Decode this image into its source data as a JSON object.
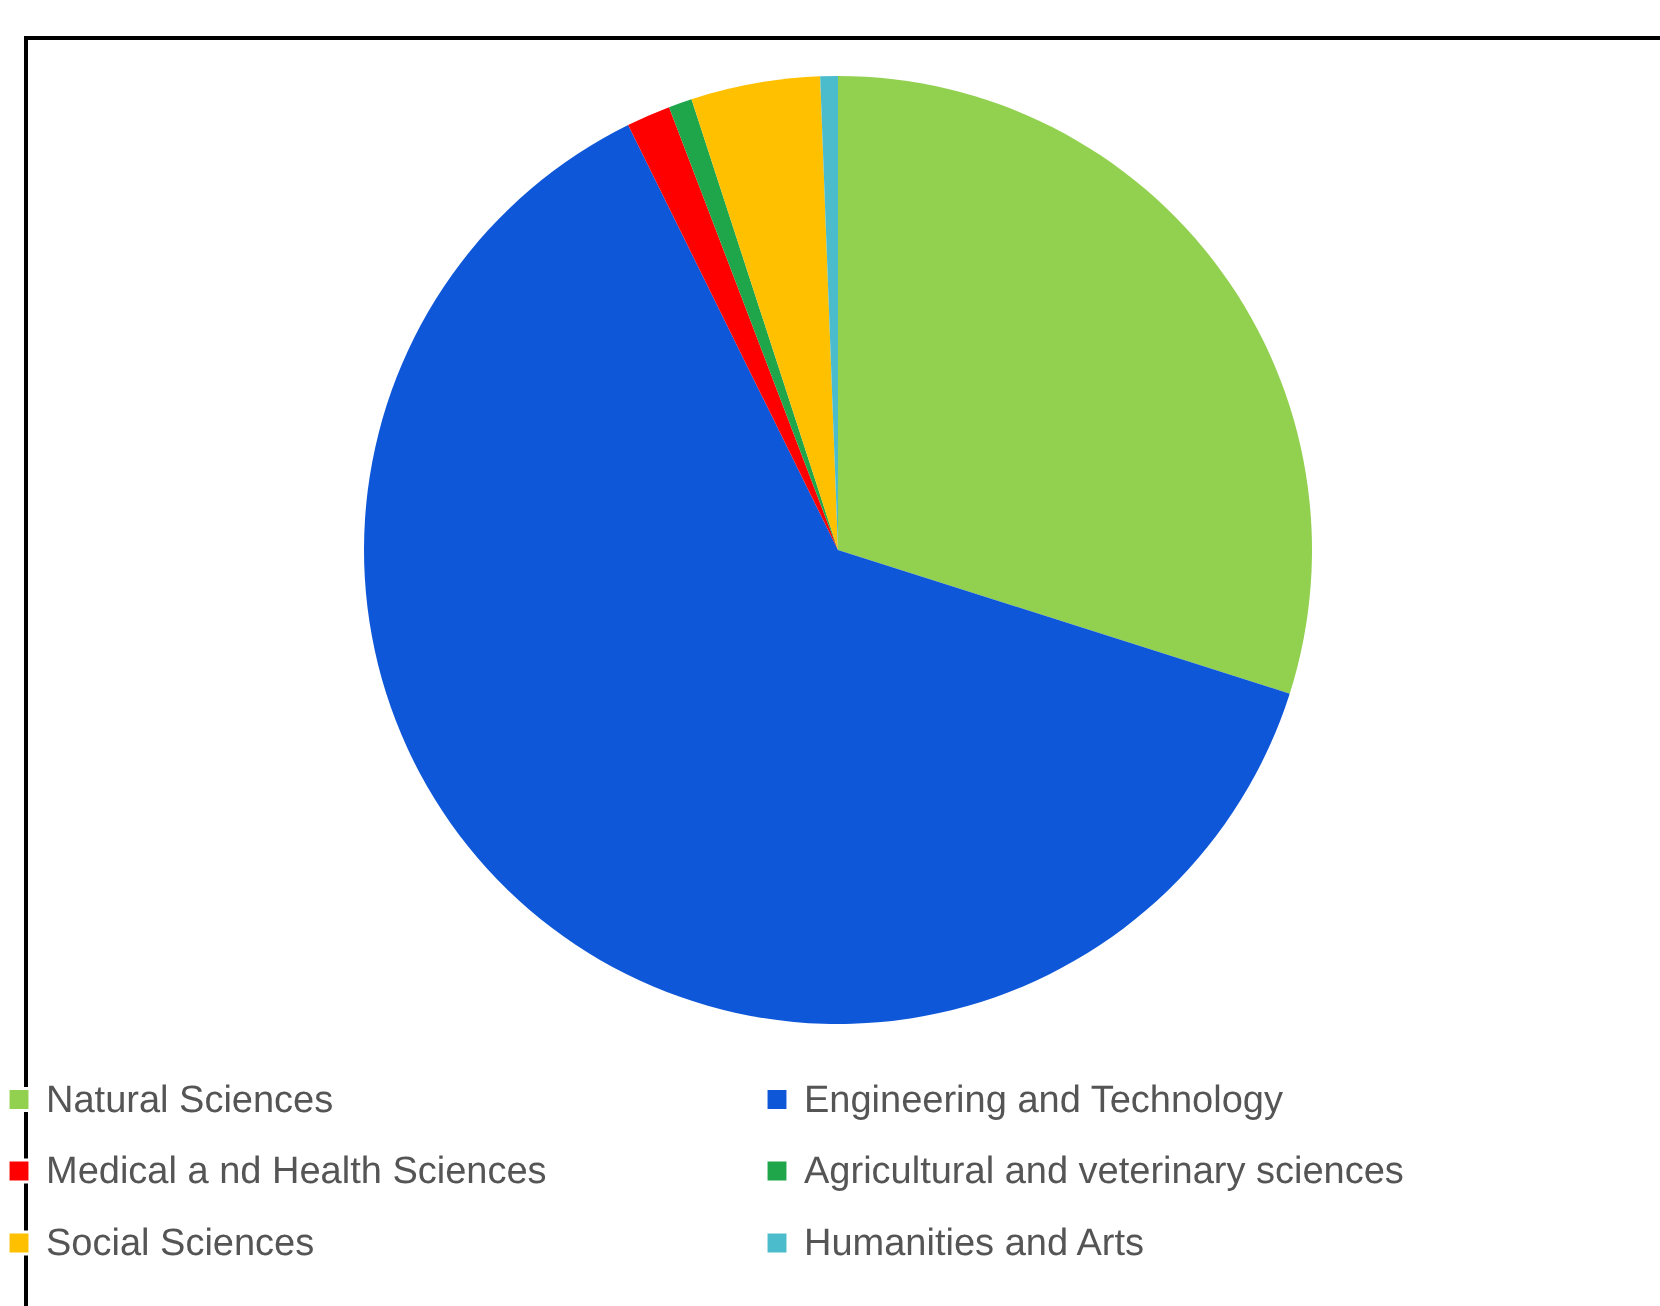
{
  "chart_data": {
    "type": "pie",
    "categories": [
      "Natural Sciences",
      "Engineering and Technology",
      "Medical a nd Health Sciences",
      "Agricultural and veterinary sciences",
      "Social Sciences",
      "Humanities and Arts"
    ],
    "values": [
      29.9,
      62.8,
      1.5,
      0.8,
      4.4,
      0.6
    ],
    "colors": [
      "#92d050",
      "#0f57d9",
      "#ff0000",
      "#1fa64a",
      "#ffc000",
      "#4bbccc"
    ],
    "legend": "bottom"
  }
}
